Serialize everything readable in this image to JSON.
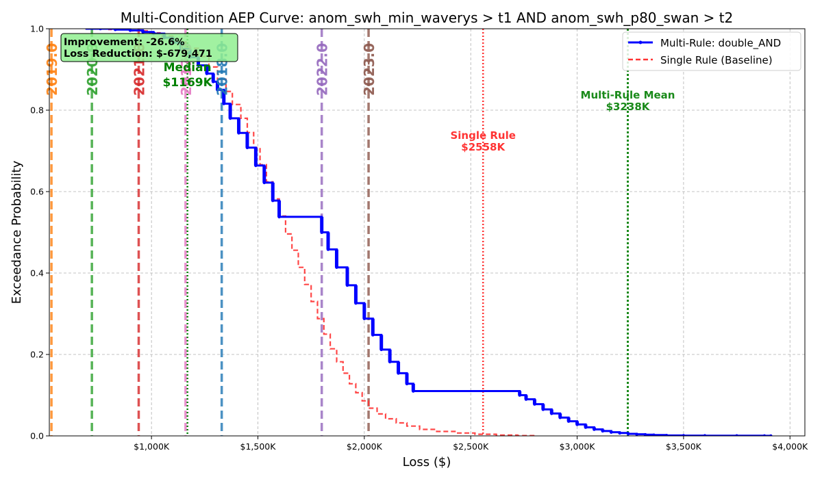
{
  "chart_data": {
    "type": "line",
    "title": "Multi-Condition AEP Curve: anom_swh_min_waverys > t1 AND anom_swh_p80_swan > t2",
    "xlabel": "Loss ($)",
    "ylabel": "Exceedance Probability",
    "xlim": [
      520000,
      4070000
    ],
    "ylim": [
      0.0,
      1.0
    ],
    "xticks": [
      1000000,
      1500000,
      2000000,
      2500000,
      3000000,
      3500000,
      4000000
    ],
    "xtick_labels": [
      "$1,000K",
      "$1,500K",
      "$2,000K",
      "$2,500K",
      "$3,000K",
      "$3,500K",
      "$4,000K"
    ],
    "yticks": [
      0.0,
      0.2,
      0.4,
      0.6,
      0.8,
      1.0
    ],
    "ytick_labels": [
      "0.0",
      "0.2",
      "0.4",
      "0.6",
      "0.8",
      "1.0"
    ],
    "grid": true,
    "legend_position": "top-right",
    "series": [
      {
        "name": "Multi-Rule: double_AND",
        "color": "#0000ff",
        "style": "solid-step",
        "x": [
          690000,
          760000,
          830000,
          900000,
          960000,
          1010000,
          1060000,
          1100000,
          1140000,
          1180000,
          1220000,
          1260000,
          1290000,
          1310000,
          1340000,
          1370000,
          1410000,
          1450000,
          1490000,
          1530000,
          1570000,
          1600000,
          1800000,
          1830000,
          1870000,
          1920000,
          1960000,
          2000000,
          2040000,
          2080000,
          2120000,
          2160000,
          2200000,
          2230000,
          2730000,
          2760000,
          2800000,
          2840000,
          2880000,
          2920000,
          2960000,
          3000000,
          3040000,
          3080000,
          3120000,
          3160000,
          3200000,
          3240000,
          3280000,
          3320000,
          3360000,
          3420000,
          3500000,
          3600000,
          3750000,
          3880000,
          3910000
        ],
        "y": [
          1.0,
          1.0,
          0.998,
          0.996,
          0.992,
          0.988,
          0.978,
          0.966,
          0.95,
          0.93,
          0.91,
          0.89,
          0.87,
          0.85,
          0.816,
          0.78,
          0.744,
          0.708,
          0.664,
          0.622,
          0.578,
          0.538,
          0.5,
          0.458,
          0.414,
          0.37,
          0.326,
          0.288,
          0.248,
          0.212,
          0.182,
          0.154,
          0.128,
          0.11,
          0.1,
          0.09,
          0.078,
          0.065,
          0.055,
          0.045,
          0.036,
          0.028,
          0.021,
          0.016,
          0.012,
          0.009,
          0.007,
          0.005,
          0.004,
          0.003,
          0.002,
          0.001,
          0.0007,
          0.0005,
          0.0003,
          0.0001,
          0.0
        ]
      },
      {
        "name": "Single Rule (Baseline)",
        "color": "#ff3333",
        "style": "dashed-step",
        "x": [
          690000,
          800000,
          900000,
          980000,
          1040000,
          1100000,
          1160000,
          1220000,
          1270000,
          1310000,
          1350000,
          1380000,
          1420000,
          1450000,
          1480000,
          1510000,
          1540000,
          1570000,
          1600000,
          1630000,
          1660000,
          1690000,
          1720000,
          1750000,
          1780000,
          1810000,
          1840000,
          1870000,
          1900000,
          1930000,
          1960000,
          1990000,
          2020000,
          2060000,
          2100000,
          2150000,
          2200000,
          2260000,
          2340000,
          2430000,
          2520000,
          2620000,
          2720000,
          2810000
        ],
        "y": [
          1.0,
          0.998,
          0.995,
          0.99,
          0.982,
          0.968,
          0.952,
          0.932,
          0.906,
          0.876,
          0.846,
          0.814,
          0.78,
          0.745,
          0.708,
          0.666,
          0.624,
          0.582,
          0.54,
          0.496,
          0.456,
          0.414,
          0.372,
          0.33,
          0.288,
          0.25,
          0.214,
          0.182,
          0.154,
          0.128,
          0.106,
          0.086,
          0.068,
          0.054,
          0.042,
          0.032,
          0.024,
          0.016,
          0.011,
          0.007,
          0.004,
          0.002,
          0.0007,
          0.0
        ]
      }
    ],
    "year_lines": [
      {
        "label": "2019.0",
        "x": 530000,
        "color": "#ff7f0e"
      },
      {
        "label": "2020.0",
        "x": 720000,
        "color": "#2ca02c"
      },
      {
        "label": "2021.0",
        "x": 940000,
        "color": "#d62728"
      },
      {
        "label": "2017.0",
        "x": 1160000,
        "color": "#e377c2"
      },
      {
        "label": "2018.0",
        "x": 1330000,
        "color": "#1f77b4"
      },
      {
        "label": "2022.0",
        "x": 1800000,
        "color": "#9467bd"
      },
      {
        "label": "2023.0",
        "x": 2020000,
        "color": "#8c564b"
      }
    ],
    "reference_lines": [
      {
        "name": "median",
        "x": 1169000,
        "color": "#008000",
        "label_lines": [
          "Median",
          "$1169K"
        ]
      },
      {
        "name": "single_rule_mean",
        "x": 2558000,
        "color": "#ff3333",
        "label_lines": [
          "Single Rule",
          "$2558K"
        ]
      },
      {
        "name": "multi_rule_mean",
        "x": 3238000,
        "color": "#1a8a1a",
        "label_lines": [
          "Multi-Rule Mean",
          "$3238K"
        ]
      }
    ],
    "annotation": {
      "lines": [
        "Improvement: -26.6%",
        "Loss Reduction: $-679,471"
      ],
      "background": "#90ee90"
    }
  }
}
